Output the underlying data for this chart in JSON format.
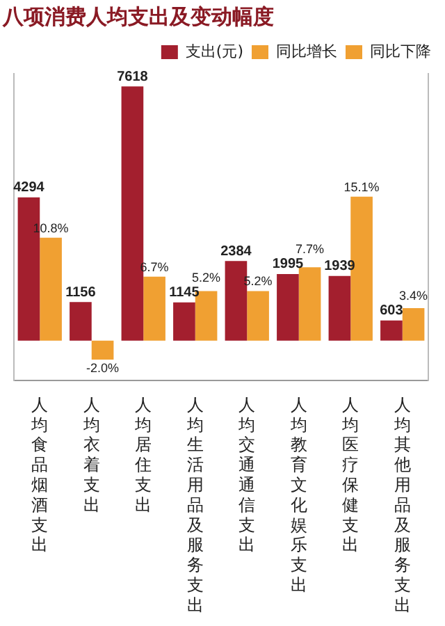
{
  "chart_data": {
    "type": "bar",
    "title": "八项消费人均支出及变动幅度",
    "categories": [
      "人均食品烟酒支出",
      "人均衣着支出",
      "人均居住支出",
      "人均生活用品及服务支出",
      "人均交通通信支出",
      "人均教育文化娱乐支出",
      "人均医疗保健支出",
      "人均其他用品及服务支出"
    ],
    "series": [
      {
        "name": "支出(元)",
        "color": "#a31f2e",
        "values": [
          4294,
          1156,
          7618,
          1145,
          2384,
          1995,
          1939,
          603
        ],
        "value_labels": [
          "4294",
          "1156",
          "7618",
          "1145",
          "2384",
          "1995",
          "1939",
          "603"
        ]
      },
      {
        "name": "同比增长",
        "color": "#f0a032",
        "axis": "y2",
        "values": [
          10.8,
          null,
          6.7,
          5.2,
          5.2,
          7.7,
          15.1,
          3.4
        ],
        "value_labels": [
          "10.8%",
          null,
          "6.7%",
          "5.2%",
          "5.2%",
          "7.7%",
          "15.1%",
          "3.4%"
        ]
      },
      {
        "name": "同比下降",
        "color": "#f0a032",
        "axis": "y2",
        "values": [
          null,
          -2.0,
          null,
          null,
          null,
          null,
          null,
          null
        ],
        "value_labels": [
          null,
          "-2.0%",
          null,
          null,
          null,
          null,
          null,
          null
        ]
      }
    ],
    "ylim": [
      -1200,
      8000
    ],
    "y2lim": [
      -4.2,
      28
    ],
    "tick_labels": "x",
    "legend": "top right"
  }
}
